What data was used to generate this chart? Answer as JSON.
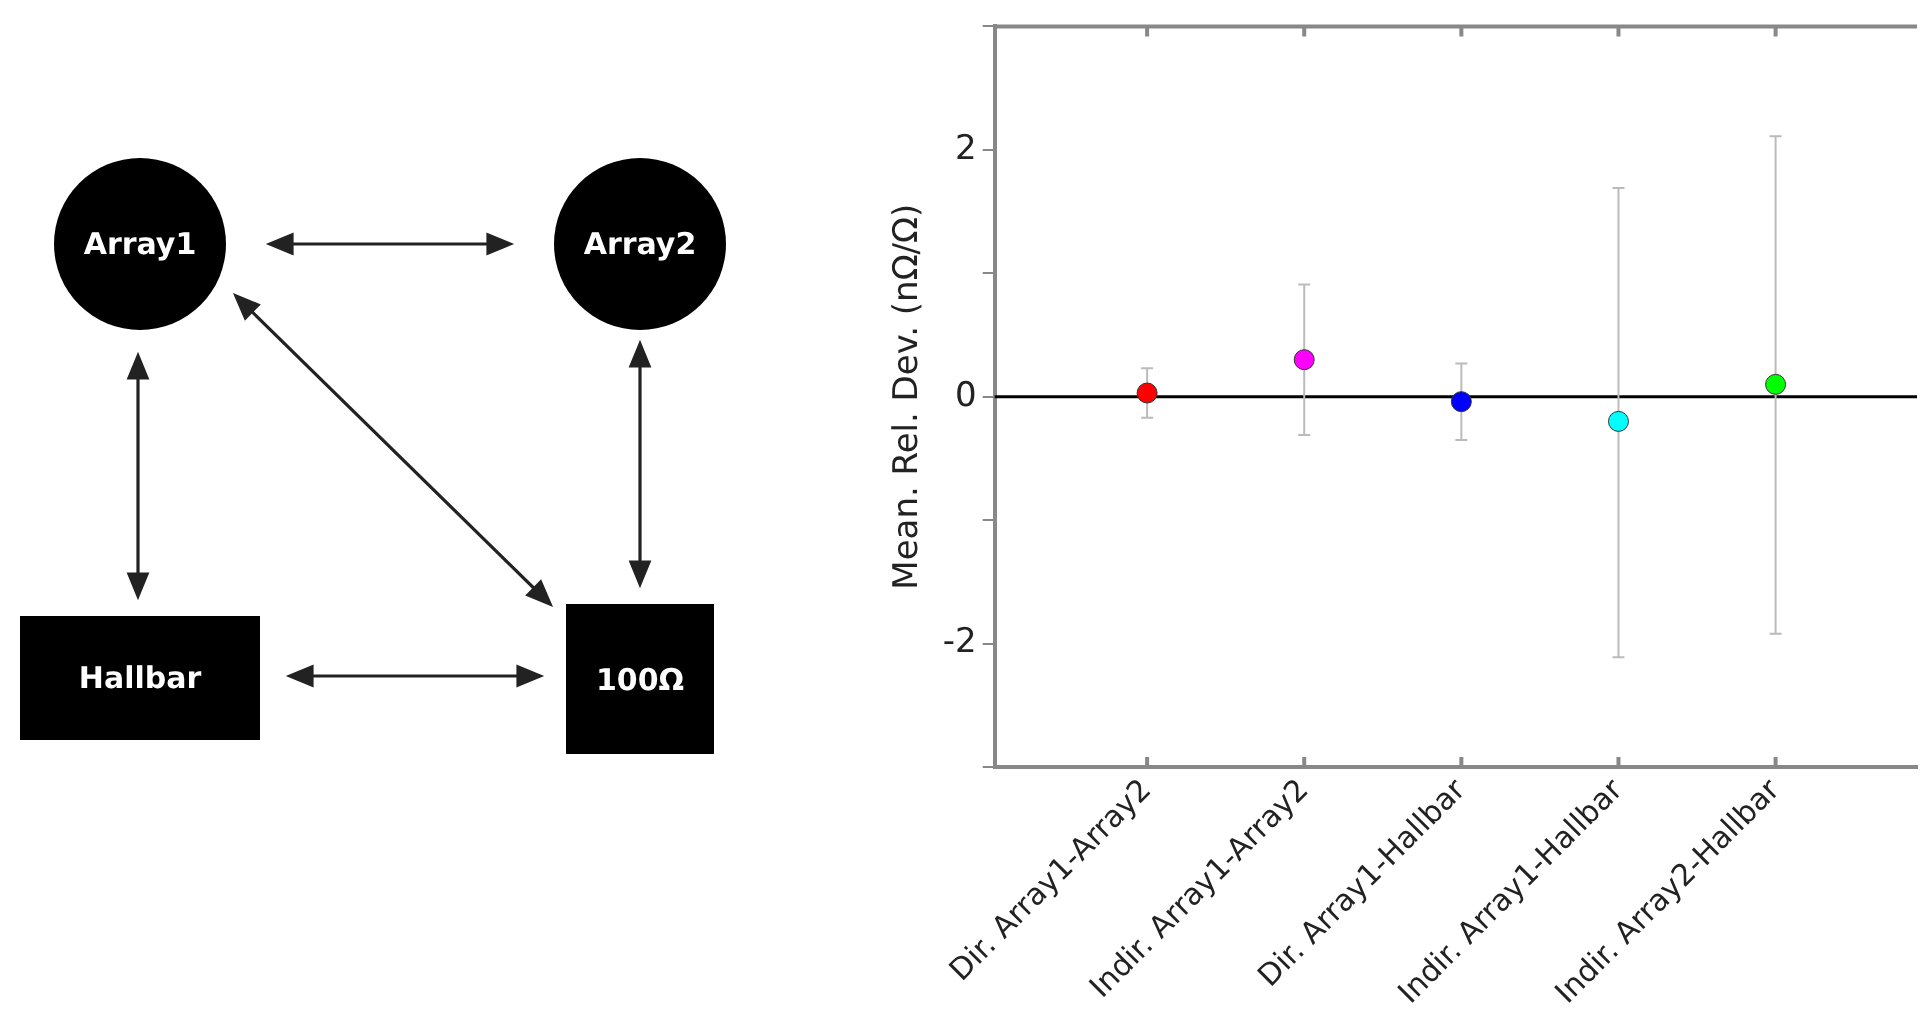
{
  "chart_data": [
    {
      "type": "other",
      "annotations": [
        "Array1",
        "Array2",
        "Hallbar",
        "100Ω"
      ]
    },
    {
      "type": "scatter",
      "ylabel": "Mean. Rel. Dev. (nΩ/Ω)",
      "categories": [
        "Dir. Array1-Array2",
        "Indir. Array1-Array2",
        "Dir. Array1-Hallbar",
        "Indir. Array1-Hallbar",
        "Indir. Array2-Hallbar"
      ],
      "values": [
        0.03,
        0.3,
        -0.04,
        -0.2,
        0.1
      ],
      "colors": [
        "#ff0000",
        "#ff00ff",
        "#0000ff",
        "#00ffff",
        "#00ff00"
      ],
      "errors": [
        [
          -0.17,
          0.23
        ],
        [
          -0.31,
          0.91
        ],
        [
          -0.35,
          0.27
        ],
        [
          -2.11,
          1.69
        ],
        [
          -1.92,
          2.11
        ]
      ],
      "ylim": [
        -3,
        3
      ],
      "yticks": [
        {
          "value": -3,
          "label": null
        },
        -2,
        {
          "value": -1,
          "label": null
        },
        0,
        {
          "value": 1,
          "label": null
        },
        2,
        {
          "value": 3,
          "label": null
        }
      ],
      "ref_lines": [
        {
          "axis": "y",
          "value": 0,
          "color": "#000000"
        }
      ],
      "marker": "circle",
      "grid": false,
      "legend": false
    }
  ]
}
